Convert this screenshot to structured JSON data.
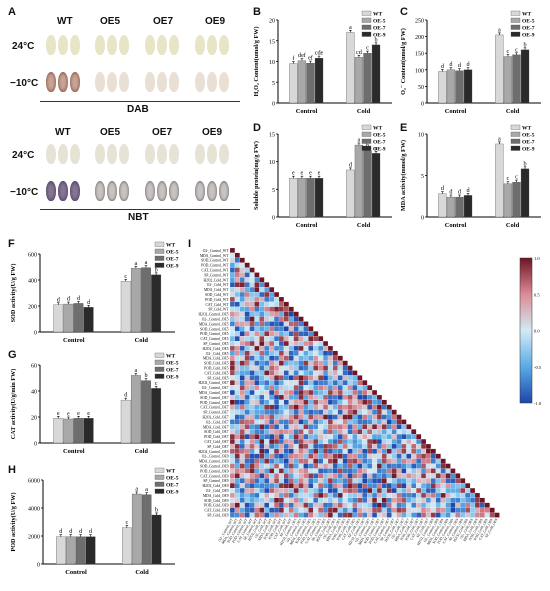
{
  "panels": {
    "A": "A",
    "B": "B",
    "C": "C",
    "D": "D",
    "E": "E",
    "F": "F",
    "G": "G",
    "H": "H",
    "I": "I"
  },
  "leaf_panel": {
    "genotypes": [
      "WT",
      "OE5",
      "OE7",
      "OE9"
    ],
    "temps": [
      "24°C",
      "−10°C"
    ],
    "dab_label": "DAB",
    "nbt_label": "NBT"
  },
  "chart_data": [
    {
      "id": "B",
      "type": "bar",
      "ylabel": "H₂O₂ Content(umol/g FW)",
      "categories": [
        "Control",
        "Cold"
      ],
      "series": [
        {
          "name": "WT",
          "values": [
            9.5,
            17.0
          ],
          "letters": [
            "f",
            "a"
          ]
        },
        {
          "name": "OE-5",
          "values": [
            10.2,
            11.0
          ],
          "letters": [
            "def",
            "cd"
          ]
        },
        {
          "name": "OE-7",
          "values": [
            9.6,
            12.0
          ],
          "letters": [
            "ef",
            "c"
          ]
        },
        {
          "name": "OE-9",
          "values": [
            10.8,
            14.0
          ],
          "letters": [
            "cde",
            "b"
          ]
        }
      ],
      "ylim": [
        0,
        20
      ],
      "yticks": [
        0,
        5,
        10,
        15,
        20
      ]
    },
    {
      "id": "C",
      "type": "bar",
      "ylabel": "O₂⁻ Content(nmol/g FW)",
      "categories": [
        "Control",
        "Cold"
      ],
      "series": [
        {
          "name": "WT",
          "values": [
            95,
            205
          ],
          "letters": [
            "d",
            "a"
          ]
        },
        {
          "name": "OE-5",
          "values": [
            100,
            140
          ],
          "letters": [
            "d",
            "c"
          ]
        },
        {
          "name": "OE-7",
          "values": [
            97,
            145
          ],
          "letters": [
            "d",
            "c"
          ]
        },
        {
          "name": "OE-9",
          "values": [
            100,
            160
          ],
          "letters": [
            "d",
            "b"
          ]
        }
      ],
      "ylim": [
        0,
        250
      ],
      "yticks": [
        0,
        50,
        100,
        150,
        200,
        250
      ]
    },
    {
      "id": "D",
      "type": "bar",
      "ylabel": "Soluble protein(mg/g FW)",
      "categories": [
        "Control",
        "Cold"
      ],
      "series": [
        {
          "name": "WT",
          "values": [
            7.0,
            8.5
          ],
          "letters": [
            "e",
            "d"
          ]
        },
        {
          "name": "OE-5",
          "values": [
            7.0,
            13.0
          ],
          "letters": [
            "e",
            "a"
          ]
        },
        {
          "name": "OE-7",
          "values": [
            7.0,
            12.0
          ],
          "letters": [
            "e",
            "b"
          ]
        },
        {
          "name": "OE-9",
          "values": [
            7.0,
            11.5
          ],
          "letters": [
            "e",
            "c"
          ]
        }
      ],
      "ylim": [
        0,
        15
      ],
      "yticks": [
        0,
        5,
        10,
        15
      ]
    },
    {
      "id": "E",
      "type": "bar",
      "ylabel": "MDA activity(mmol/g FW)",
      "categories": [
        "Control",
        "Cold"
      ],
      "series": [
        {
          "name": "WT",
          "values": [
            2.8,
            8.8
          ],
          "letters": [
            "d",
            "a"
          ]
        },
        {
          "name": "OE-5",
          "values": [
            2.4,
            4.0
          ],
          "letters": [
            "d",
            "c"
          ]
        },
        {
          "name": "OE-7",
          "values": [
            2.4,
            4.2
          ],
          "letters": [
            "d",
            "c"
          ]
        },
        {
          "name": "OE-9",
          "values": [
            2.6,
            5.8
          ],
          "letters": [
            "d",
            "b"
          ]
        }
      ],
      "ylim": [
        0,
        10
      ],
      "yticks": [
        0,
        5,
        10
      ]
    },
    {
      "id": "F",
      "type": "bar",
      "ylabel": "SOD activity(U/g FW)",
      "categories": [
        "Control",
        "Cold"
      ],
      "series": [
        {
          "name": "WT",
          "values": [
            210,
            390
          ],
          "letters": [
            "d",
            "c"
          ]
        },
        {
          "name": "OE-5",
          "values": [
            215,
            490
          ],
          "letters": [
            "d",
            "a"
          ]
        },
        {
          "name": "OE-7",
          "values": [
            220,
            495
          ],
          "letters": [
            "d",
            "a"
          ]
        },
        {
          "name": "OE-9",
          "values": [
            190,
            440
          ],
          "letters": [
            "d",
            "b"
          ]
        }
      ],
      "ylim": [
        0,
        600
      ],
      "yticks": [
        0,
        200,
        400,
        600
      ]
    },
    {
      "id": "G",
      "type": "bar",
      "ylabel": "CAT activity(U/g/min FW)",
      "categories": [
        "Control",
        "Cold"
      ],
      "series": [
        {
          "name": "WT",
          "values": [
            19,
            33
          ],
          "letters": [
            "e",
            "d"
          ]
        },
        {
          "name": "OE-5",
          "values": [
            18.5,
            52
          ],
          "letters": [
            "e",
            "a"
          ]
        },
        {
          "name": "OE-7",
          "values": [
            19,
            48
          ],
          "letters": [
            "e",
            "b"
          ]
        },
        {
          "name": "OE-9",
          "values": [
            19,
            42
          ],
          "letters": [
            "e",
            "c"
          ]
        }
      ],
      "ylim": [
        0,
        60
      ],
      "yticks": [
        0,
        20,
        40,
        60
      ]
    },
    {
      "id": "H",
      "type": "bar",
      "ylabel": "POD activity(U/g FW)",
      "categories": [
        "Control",
        "Cold"
      ],
      "series": [
        {
          "name": "WT",
          "values": [
            1950,
            2600
          ],
          "letters": [
            "d",
            "c"
          ]
        },
        {
          "name": "OE-5",
          "values": [
            1950,
            5000
          ],
          "letters": [
            "d",
            "a"
          ]
        },
        {
          "name": "OE-7",
          "values": [
            1950,
            4950
          ],
          "letters": [
            "d",
            "a"
          ]
        },
        {
          "name": "OE-9",
          "values": [
            1950,
            3500
          ],
          "letters": [
            "d",
            "b"
          ]
        }
      ],
      "ylim": [
        0,
        6000
      ],
      "yticks": [
        0,
        2000,
        4000,
        6000
      ]
    },
    {
      "id": "I",
      "type": "heatmap",
      "row_labels": [
        "O2-_Control_WT",
        "MDA_Control_WT",
        "SOD_Control_WT",
        "POD_Control_WT",
        "CAT_Control_WT",
        "SP_Control_WT",
        "H2O2_Cold_WT",
        "O2-_Cold_WT",
        "MDA_Cold_WT",
        "SOD_Cold_WT",
        "POD_Cold_WT",
        "CAT_Cold_WT",
        "SP_Cold_WT",
        "H2O2_Control_OE5",
        "O2-_Control_OE5",
        "MDA_Control_OE5",
        "SOD_Control_OE5",
        "POD_Control_OE5",
        "CAT_Control_OE5",
        "SP_Control_OE5",
        "H2O2_Cold_OE5",
        "O2-_Cold_OE5",
        "MDA_Cold_OE5",
        "SOD_Cold_OE5",
        "POD_Cold_OE5",
        "CAT_Cold_OE5",
        "SP_Cold_OE5",
        "H2O2_Control_OE7",
        "O2-_Control_OE7",
        "MDA_Control_OE7",
        "SOD_Control_OE7",
        "POD_Control_OE7",
        "CAT_Control_OE7",
        "SP_Control_OE7",
        "H2O2_Cold_OE7",
        "O2-_Cold_OE7",
        "MDA_Cold_OE7",
        "SOD_Cold_OE7",
        "POD_Cold_OE7",
        "CAT_Cold_OE7",
        "SP_Cold_OE7",
        "H2O2_Control_OE9",
        "O2-_Control_OE9",
        "MDA_Control_OE9",
        "SOD_Control_OE9",
        "POD_Control_OE9",
        "CAT_Control_OE9",
        "SP_Control_OE9",
        "H2O2_Cold_OE9",
        "O2-_Cold_OE9",
        "MDA_Cold_OE9",
        "SOD_Cold_OE9",
        "POD_Cold_OE9",
        "CAT_Cold_OE9",
        "SP_Cold_OE9"
      ],
      "colorbar_ticks": [
        "1.0",
        "0.5",
        "0.0",
        "-0.5",
        "-1.0"
      ],
      "vmin": -1,
      "vmax": 1
    }
  ],
  "colors": {
    "WT": "#d8d8d8",
    "OE-5": "#a8a8a8",
    "OE-7": "#6e6e6e",
    "OE-9": "#2a2a2a"
  }
}
